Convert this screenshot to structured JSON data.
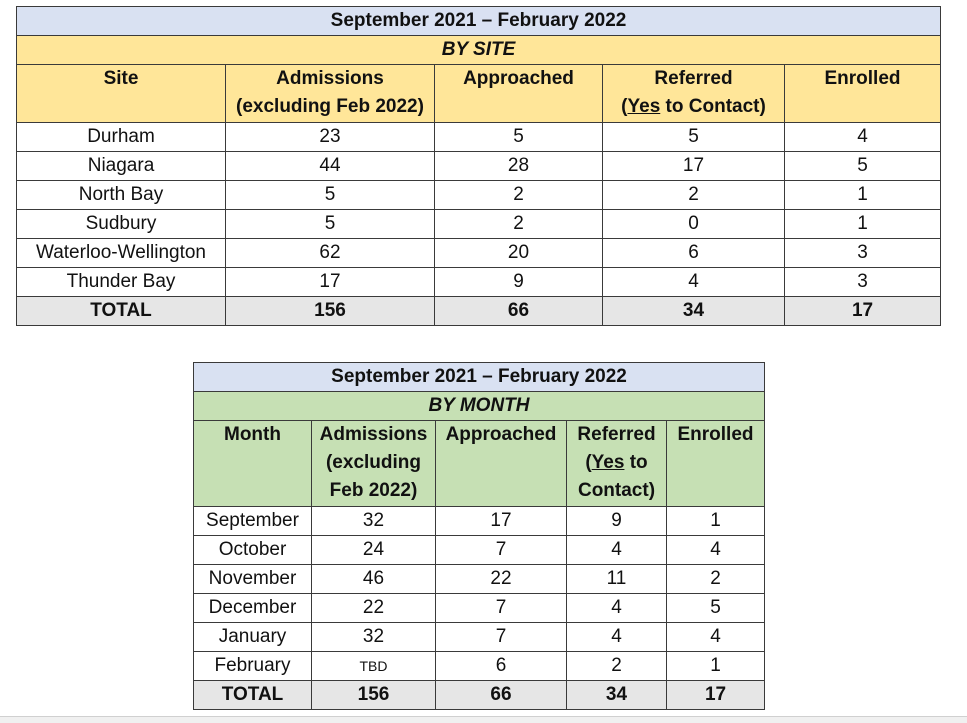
{
  "site_table": {
    "title": "September 2021 – February 2022",
    "subtitle": "BY SITE",
    "headers": {
      "site": "Site",
      "admissions_1": "Admissions",
      "admissions_2": "(excluding Feb 2022)",
      "approached": "Approached",
      "referred_1": "Referred",
      "referred_open": "(",
      "referred_yes": "Yes",
      "referred_rest": " to Contact)",
      "enrolled": "Enrolled"
    },
    "rows": [
      {
        "site": "Durham",
        "admissions": "23",
        "approached": "5",
        "referred": "5",
        "enrolled": "4"
      },
      {
        "site": "Niagara",
        "admissions": "44",
        "approached": "28",
        "referred": "17",
        "enrolled": "5"
      },
      {
        "site": "North Bay",
        "admissions": "5",
        "approached": "2",
        "referred": "2",
        "enrolled": "1"
      },
      {
        "site": "Sudbury",
        "admissions": "5",
        "approached": "2",
        "referred": "0",
        "enrolled": "1"
      },
      {
        "site": "Waterloo-Wellington",
        "admissions": "62",
        "approached": "20",
        "referred": "6",
        "enrolled": "3"
      },
      {
        "site": "Thunder Bay",
        "admissions": "17",
        "approached": "9",
        "referred": "4",
        "enrolled": "3"
      }
    ],
    "total": {
      "label": "TOTAL",
      "admissions": "156",
      "approached": "66",
      "referred": "34",
      "enrolled": "17"
    },
    "colors": {
      "title_bg": "#d9e1f2",
      "header_bg": "#ffe699",
      "total_bg": "#e6e6e6"
    }
  },
  "month_table": {
    "title": "September 2021 – February 2022",
    "subtitle": "BY MONTH",
    "headers": {
      "month": "Month",
      "admissions_1": "Admissions",
      "admissions_2": "(excluding",
      "admissions_3": "Feb 2022)",
      "approached": "Approached",
      "referred_1": "Referred",
      "referred_open": "(",
      "referred_yes": "Yes",
      "referred_rest": " to",
      "referred_3": "Contact)",
      "enrolled": "Enrolled"
    },
    "rows": [
      {
        "month": "September",
        "admissions": "32",
        "approached": "17",
        "referred": "9",
        "enrolled": "1"
      },
      {
        "month": "October",
        "admissions": "24",
        "approached": "7",
        "referred": "4",
        "enrolled": "4"
      },
      {
        "month": "November",
        "admissions": "46",
        "approached": "22",
        "referred": "11",
        "enrolled": "2"
      },
      {
        "month": "December",
        "admissions": "22",
        "approached": "7",
        "referred": "4",
        "enrolled": "5"
      },
      {
        "month": "January",
        "admissions": "32",
        "approached": "7",
        "referred": "4",
        "enrolled": "4"
      },
      {
        "month": "February",
        "admissions": "TBD",
        "approached": "6",
        "referred": "2",
        "enrolled": "1"
      }
    ],
    "total": {
      "label": "TOTAL",
      "admissions": "156",
      "approached": "66",
      "referred": "34",
      "enrolled": "17"
    },
    "colors": {
      "title_bg": "#d9e1f2",
      "header_bg": "#c6e0b4",
      "total_bg": "#e6e6e6"
    }
  }
}
